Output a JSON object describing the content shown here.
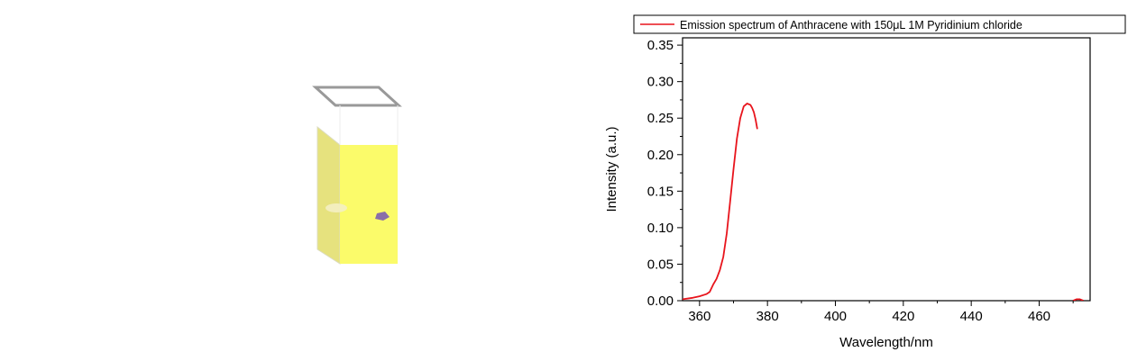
{
  "colors": {
    "series": "#e8141c",
    "cuvette_liquid": "#fbfb6a"
  },
  "chart_data": {
    "type": "line",
    "title": "",
    "xlabel": "Wavelength/nm",
    "ylabel": "Intensity (a.u.)",
    "xlim": [
      355,
      475
    ],
    "ylim": [
      0.0,
      0.36
    ],
    "xticks": [
      360,
      380,
      400,
      420,
      440,
      460
    ],
    "xtick_labels": [
      "360",
      "380",
      "400",
      "420",
      "440",
      "460"
    ],
    "yticks": [
      0.0,
      0.05,
      0.1,
      0.15,
      0.2,
      0.25,
      0.3,
      0.35
    ],
    "ytick_labels": [
      "0.00",
      "0.05",
      "0.10",
      "0.15",
      "0.20",
      "0.25",
      "0.30",
      "0.35"
    ],
    "legend_position": "top",
    "series": [
      {
        "name": "Emission spectrum of Anthracene with 150μL 1M Pyridinium chloride",
        "color": "#e8141c",
        "segments": [
          {
            "x": [
              355,
              358,
              360,
              362,
              363,
              364,
              365,
              366,
              367,
              368,
              369,
              370,
              371,
              372,
              373,
              374,
              375,
              375.5,
              376,
              376.5,
              377
            ],
            "y": [
              0.002,
              0.004,
              0.006,
              0.009,
              0.012,
              0.022,
              0.03,
              0.042,
              0.06,
              0.092,
              0.135,
              0.18,
              0.222,
              0.25,
              0.266,
              0.27,
              0.268,
              0.264,
              0.258,
              0.248,
              0.235
            ]
          },
          {
            "x": [
              470,
              471,
              472,
              473
            ],
            "y": [
              0.0,
              0.002,
              0.002,
              0.0
            ]
          }
        ]
      }
    ]
  }
}
